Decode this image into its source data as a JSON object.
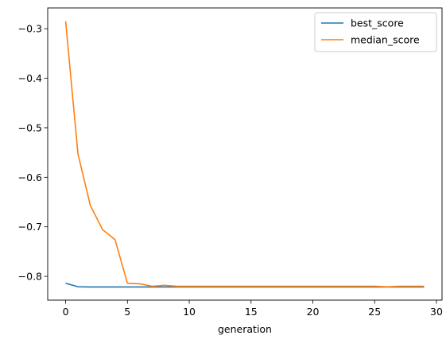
{
  "chart_data": {
    "type": "line",
    "title": "",
    "xlabel": "generation",
    "ylabel": "",
    "xlim": [
      -1.45,
      30.45
    ],
    "ylim": [
      -0.848,
      -0.258
    ],
    "xticks": [
      0,
      5,
      10,
      15,
      20,
      25,
      30
    ],
    "yticks": [
      -0.8,
      -0.7,
      -0.6,
      -0.5,
      -0.4,
      -0.3
    ],
    "grid": false,
    "legend_position": "top-right",
    "x": [
      0,
      1,
      2,
      3,
      4,
      5,
      6,
      7,
      8,
      9,
      10,
      11,
      12,
      13,
      14,
      15,
      16,
      17,
      18,
      19,
      20,
      21,
      22,
      23,
      24,
      25,
      26,
      27,
      28,
      29
    ],
    "series": [
      {
        "name": "best_score",
        "color": "#1f77b4",
        "values": [
          -0.814,
          -0.821,
          -0.8215,
          -0.8215,
          -0.8215,
          -0.8215,
          -0.8215,
          -0.8215,
          -0.8215,
          -0.8215,
          -0.8215,
          -0.8215,
          -0.8215,
          -0.8215,
          -0.8215,
          -0.8215,
          -0.8215,
          -0.8215,
          -0.8215,
          -0.8215,
          -0.8215,
          -0.8215,
          -0.8215,
          -0.8215,
          -0.8215,
          -0.8215,
          -0.8215,
          -0.8215,
          -0.8215,
          -0.8215
        ]
      },
      {
        "name": "median_score",
        "color": "#ff7f0e",
        "values": [
          -0.285,
          -0.553,
          -0.657,
          -0.706,
          -0.726,
          -0.814,
          -0.815,
          -0.82,
          -0.818,
          -0.82,
          -0.82,
          -0.82,
          -0.82,
          -0.82,
          -0.82,
          -0.82,
          -0.82,
          -0.82,
          -0.82,
          -0.82,
          -0.82,
          -0.82,
          -0.82,
          -0.82,
          -0.82,
          -0.82,
          -0.821,
          -0.82,
          -0.82,
          -0.82
        ]
      }
    ]
  }
}
